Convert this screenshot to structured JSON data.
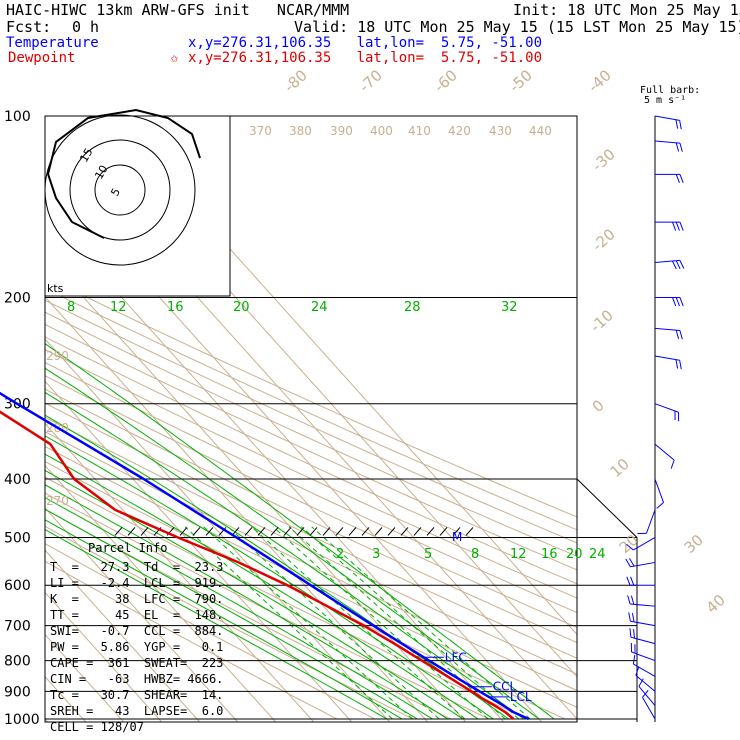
{
  "header": {
    "title": "HAIC-HIWC 13km ARW-GFS init   NCAR/MMM",
    "init": "Init: 18 UTC Mon 25 May 15",
    "fcst_label": "Fcst:",
    "fcst_value": "0 h",
    "valid": "Valid: 18 UTC Mon 25 May 15 (15 LST Mon 25 May 15)",
    "temperature_label": "Temperature",
    "temperature_loc": "x,y=276.31,106.35   lat,lon=  5.75, -51.00",
    "dewpoint_label": "Dewpoint",
    "dewpoint_loc": "x,y=276.31,106.35   lat,lon=  5.75, -51.00",
    "dewpoint_star": "✩"
  },
  "barb_key": {
    "line1": "Full barb:",
    "line2": "5 m s⁻¹"
  },
  "hodograph": {
    "units": "kts",
    "ring_labels": [
      "5",
      "10",
      "15"
    ]
  },
  "parcel_info": {
    "title": "Parcel Info",
    "rows": [
      "T  =   27.3  Td  =  23.3",
      "LI =   -2.4  LCL =  919.",
      "K  =     38  LFC =  790.",
      "TT =     45  EL  =  148.",
      "SWI=   -0.7  CCL =  884.",
      "PW =   5.86  YGP =   0.1",
      "CAPE =  361  SWEAT=  223",
      "CIN =   -63  HWBZ= 4666.",
      "Tc =   30.7  SHEAR=  14.",
      "SREH =   43  LAPSE=  6.0",
      "CELL = 128/07"
    ]
  },
  "level_labels": [
    "EL",
    "LFC",
    "CCL",
    "LCL",
    "M"
  ],
  "colors": {
    "temperature": "#0000ff",
    "dewpoint": "#e00000",
    "isotherm": "#c8b090",
    "mixing_ratio": "#00b000",
    "isobar": "#000000"
  },
  "chart_data": {
    "type": "line",
    "xlabel": "",
    "ylabel": "",
    "pressure_ticks": [
      100,
      200,
      300,
      400,
      500,
      600,
      700,
      800,
      900,
      1000
    ],
    "isotherm_labels": [
      "-80",
      "-70",
      "-60",
      "-50",
      "-40",
      "-30",
      "-20",
      "-10",
      "0",
      "10",
      "20",
      "30",
      "40"
    ],
    "theta_labels_top": [
      "370",
      "380",
      "390",
      "400",
      "410",
      "420",
      "430",
      "440"
    ],
    "theta_labels_left": [
      "290",
      "280",
      "270"
    ],
    "mixing_ratio_labels_upper": [
      "8",
      "12",
      "16",
      "20",
      "24",
      "28",
      "32"
    ],
    "mixing_ratio_labels_lower": [
      "2",
      "3",
      "5",
      "8",
      "12",
      "16",
      "20",
      "24"
    ],
    "series": [
      {
        "name": "Temperature",
        "p": [
          1000,
          975,
          950,
          925,
          900,
          850,
          800,
          750,
          700,
          650,
          600,
          550,
          500,
          450,
          400,
          350,
          300,
          250,
          200,
          175,
          150,
          125,
          110,
          100
        ],
        "t": [
          27.3,
          25.0,
          23.8,
          22.4,
          20.9,
          17.9,
          14.9,
          11.8,
          8.5,
          5.2,
          1.6,
          -2.3,
          -6.6,
          -11.6,
          -17.2,
          -24.3,
          -32.7,
          -42.0,
          -53.0,
          -58.5,
          -64.5,
          -73.5,
          -78.0,
          -80.0
        ]
      },
      {
        "name": "Dewpoint",
        "p": [
          1000,
          975,
          950,
          925,
          900,
          850,
          800,
          750,
          700,
          650,
          600,
          550,
          500,
          450,
          400,
          350,
          300,
          250,
          200,
          175,
          150,
          125,
          110,
          100
        ],
        "t": [
          23.3,
          22.8,
          21.5,
          20.0,
          18.8,
          16.0,
          13.0,
          9.8,
          6.0,
          1.0,
          -4.5,
          -12.0,
          -22.0,
          -32.0,
          -35.5,
          -33.5,
          -40.5,
          -50.5,
          -60.5,
          -66.0,
          -73.0,
          -81.0,
          -84.5,
          -86.0
        ]
      }
    ],
    "winds": {
      "p": [
        100,
        110,
        125,
        150,
        175,
        200,
        225,
        250,
        300,
        350,
        400,
        450,
        500,
        550,
        600,
        650,
        700,
        750,
        800,
        850,
        900,
        950,
        1000
      ],
      "speed_ms": [
        8,
        10,
        12,
        14,
        16,
        14,
        12,
        10,
        8,
        6,
        4,
        5,
        6,
        8,
        10,
        10,
        9,
        8,
        8,
        7,
        6,
        5,
        4
      ],
      "dir_deg": [
        100,
        95,
        90,
        90,
        85,
        90,
        95,
        100,
        110,
        130,
        160,
        200,
        240,
        260,
        270,
        275,
        280,
        285,
        290,
        300,
        310,
        320,
        330
      ]
    },
    "hodograph_u": [
      -2,
      -6,
      -8,
      -9,
      -8,
      -4,
      2,
      6,
      9,
      10
    ],
    "hodograph_v": [
      -6,
      -4,
      -1,
      2,
      6,
      9,
      10,
      9,
      7,
      4
    ]
  }
}
